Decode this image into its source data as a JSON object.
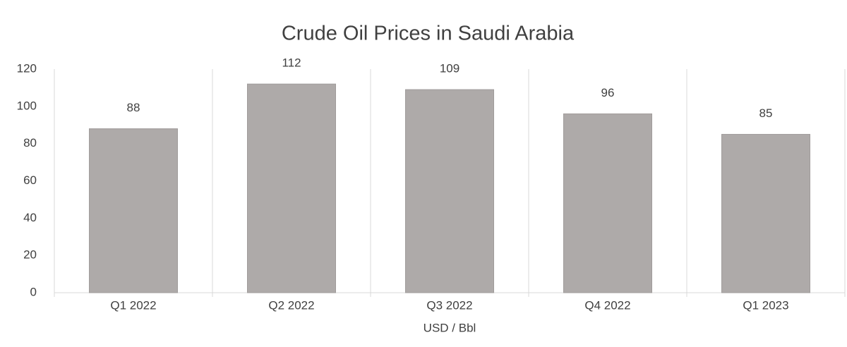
{
  "chart_data": {
    "type": "bar",
    "title": "Crude Oil Prices in Saudi Arabia",
    "x_label": "USD / Bbl",
    "categories": [
      "Q1 2022",
      "Q2 2022",
      "Q3 2022",
      "Q4 2022",
      "Q1 2023"
    ],
    "values": [
      88,
      112,
      109,
      96,
      85
    ],
    "color": "#aeaaa9",
    "ylim": [
      0,
      120
    ],
    "yticks": [
      0,
      20,
      40,
      60,
      80,
      100,
      120
    ]
  }
}
